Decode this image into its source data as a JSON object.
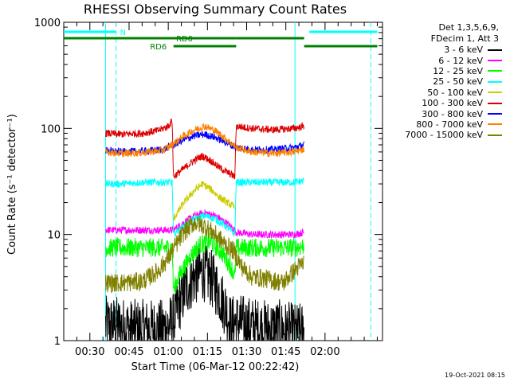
{
  "chart_data": {
    "type": "line",
    "title": "RHESSI Observing Summary Count Rates",
    "xlabel": "Start Time (06-Mar-12 00:22:42)",
    "ylabel": "Count Rate (s⁻¹ detector⁻¹)",
    "yscale": "log",
    "ylim": [
      1,
      1000
    ],
    "xlim_min": [
      20,
      142
    ],
    "yticks": [
      1,
      10,
      100,
      1000
    ],
    "yticklabels": [
      "1",
      "10",
      "100",
      "1000"
    ],
    "xticks_min": [
      30,
      45,
      60,
      75,
      90,
      105,
      120
    ],
    "xticklabels": [
      "00:30",
      "00:45",
      "01:00",
      "01:15",
      "01:30",
      "01:45",
      "02:00"
    ],
    "legend_header": [
      "Det 1,3,5,6,9,",
      "FDecim 1, Att 3"
    ],
    "bands": [
      {
        "label": "3 - 6 keV",
        "color": "#000000"
      },
      {
        "label": "6 - 12 keV",
        "color": "#ff00ff"
      },
      {
        "label": "12 - 25 keV",
        "color": "#00ff00"
      },
      {
        "label": "25 - 50 keV",
        "color": "#00ffff"
      },
      {
        "label": "50 - 100 keV",
        "color": "#cccc00"
      },
      {
        "label": "100 - 300 keV",
        "color": "#dd0000"
      },
      {
        "label": "300 - 800 keV",
        "color": "#0000ff"
      },
      {
        "label": "800 - 7000 keV",
        "color": "#ff8000"
      },
      {
        "label": "7000 - 15000 keV",
        "color": "#808000"
      }
    ],
    "series": [
      {
        "name": "3 - 6 keV",
        "color": "#000000",
        "t": [
          36,
          40,
          46,
          52,
          58,
          62,
          64,
          67,
          70,
          73,
          76,
          79,
          82,
          84,
          86,
          90,
          96,
          102,
          108,
          112
        ],
        "y": [
          1.4,
          1.4,
          1.3,
          1.3,
          1.3,
          1.5,
          2.2,
          3.2,
          4.0,
          4.5,
          4.0,
          3.0,
          2.0,
          1.4,
          1.5,
          1.4,
          1.3,
          1.3,
          1.2,
          1.2
        ]
      },
      {
        "name": "6 - 12 keV",
        "color": "#ff00ff",
        "t": [
          36,
          42,
          50,
          58,
          61.5,
          62,
          66,
          70,
          74,
          78,
          82,
          85.5,
          86,
          92,
          100,
          108,
          112
        ],
        "y": [
          11,
          11,
          11,
          11,
          11,
          11,
          13,
          15,
          16,
          15,
          13,
          11,
          10.5,
          10,
          10,
          10,
          10.5
        ]
      },
      {
        "name": "12 - 25 keV",
        "color": "#00ff00",
        "t": [
          36,
          42,
          50,
          58,
          61.5,
          62,
          64,
          68,
          72,
          76,
          80,
          84,
          85.5,
          86,
          92,
          100,
          108,
          112
        ],
        "y": [
          7.5,
          7.5,
          7.5,
          7.5,
          7.5,
          3.0,
          4.0,
          6.0,
          8.0,
          8.5,
          7.0,
          5.0,
          4.0,
          7.5,
          7.5,
          7.5,
          7.5,
          7.8
        ]
      },
      {
        "name": "25 - 50 keV",
        "color": "#00ffff",
        "t": [
          36,
          42,
          50,
          58,
          61.5,
          62,
          66,
          70,
          74,
          78,
          82,
          85.5,
          86,
          92,
          100,
          108,
          112
        ],
        "y": [
          30,
          30,
          31,
          31,
          31,
          10,
          12,
          14,
          15,
          14,
          12,
          10,
          31,
          31,
          31,
          31,
          32
        ]
      },
      {
        "name": "50 - 100 keV",
        "color": "#cccc00",
        "t": [
          62,
          66,
          70,
          73,
          76,
          80,
          85.5
        ],
        "y": [
          14,
          20,
          26,
          30,
          27,
          22,
          18
        ]
      },
      {
        "name": "100 - 300 keV",
        "color": "#dd0000",
        "t": [
          36,
          42,
          50,
          56,
          60,
          61.5,
          62,
          66,
          70,
          73,
          76,
          80,
          85.5,
          86,
          92,
          100,
          108,
          112
        ],
        "y": [
          90,
          88,
          90,
          95,
          105,
          118,
          35,
          42,
          50,
          55,
          50,
          42,
          35,
          105,
          100,
          97,
          100,
          105
        ]
      },
      {
        "name": "300 - 800 keV",
        "color": "#0000ff",
        "t": [
          36,
          42,
          50,
          58,
          62,
          66,
          70,
          74,
          78,
          82,
          86,
          92,
          100,
          108,
          112
        ],
        "y": [
          62,
          60,
          61,
          63,
          70,
          78,
          85,
          88,
          82,
          74,
          66,
          63,
          63,
          66,
          70
        ]
      },
      {
        "name": "800 - 7000 keV",
        "color": "#ff8000",
        "t": [
          36,
          42,
          50,
          58,
          62,
          66,
          70,
          74,
          78,
          82,
          86,
          92,
          100,
          108,
          112
        ],
        "y": [
          60,
          58,
          59,
          62,
          72,
          85,
          97,
          105,
          95,
          80,
          66,
          60,
          58,
          60,
          64
        ]
      },
      {
        "name": "7000 - 15000 keV",
        "color": "#808000",
        "t": [
          36,
          42,
          50,
          56,
          60,
          63,
          66,
          70,
          74,
          78,
          82,
          85,
          88,
          92,
          98,
          104,
          108,
          112
        ],
        "y": [
          3.5,
          3.5,
          3.6,
          4.5,
          6.0,
          8.0,
          10.5,
          13,
          12,
          10,
          8.0,
          7.0,
          5.0,
          4.0,
          3.8,
          3.5,
          4.5,
          5.5
        ]
      }
    ],
    "attenuator_bars": [
      {
        "label": "N",
        "color": "#00ffff",
        "segments": [
          [
            20,
            40
          ],
          [
            114,
            140
          ]
        ],
        "level": "top"
      },
      {
        "label": "RD0",
        "color": "#008000",
        "segments": [
          [
            20,
            86
          ],
          [
            86,
            112
          ]
        ],
        "level": "mid"
      },
      {
        "label": "RD6",
        "color": "#008000",
        "segments": [
          [
            62,
            86
          ],
          [
            112,
            140
          ]
        ],
        "level": "low"
      }
    ],
    "vertical_lines": [
      {
        "t": 36,
        "style": "solid",
        "color": "#00ffff"
      },
      {
        "t": 40,
        "style": "dashed",
        "color": "#00ffff"
      },
      {
        "t": 108.5,
        "style": "solid",
        "color": "#00ffff"
      },
      {
        "t": 137.5,
        "style": "dashed",
        "color": "#00ffff"
      }
    ]
  },
  "footer_stamp": "19-Oct-2021 08:15"
}
